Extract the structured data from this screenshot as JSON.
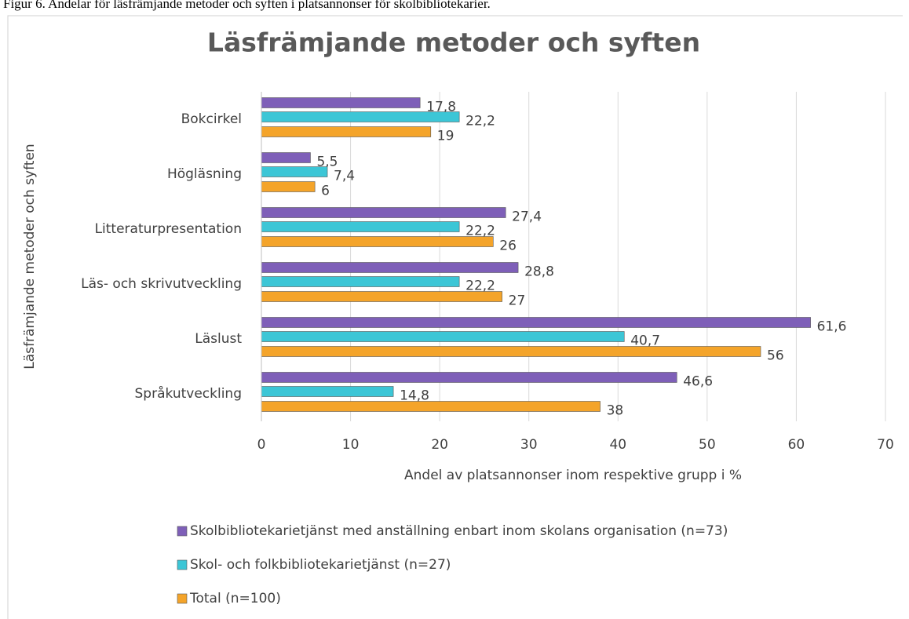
{
  "caption": "Figur 6. Andelar för läsfrämjande metoder och syften i platsannonser för skolbibliotekarier.",
  "chart_data": {
    "type": "hbar",
    "title": "Läsfrämjande metoder och syften",
    "xlabel": "Andel av platsannonser inom respektive grupp i %",
    "ylabel": "Läsfrämjande metoder och syften",
    "categories": [
      "Bokcirkel",
      "Högläsning",
      "Litteraturpresentation",
      "Läs- och skrivutveckling",
      "Läslust",
      "Språkutveckling"
    ],
    "series": [
      {
        "name": "Skolbibliotekarietjänst med anställning enbart inom skolans organisation (n=73)",
        "color": "#7e5fb8",
        "values": [
          17.8,
          5.5,
          27.4,
          28.8,
          61.6,
          46.6
        ],
        "value_labels": [
          "17,8",
          "5,5",
          "27,4",
          "28,8",
          "61,6",
          "46,6"
        ]
      },
      {
        "name": "Skol- och folkbibliotekarietjänst (n=27)",
        "color": "#3cc6d6",
        "values": [
          22.2,
          7.4,
          22.2,
          22.2,
          40.7,
          14.8
        ],
        "value_labels": [
          "22,2",
          "7,4",
          "22,2",
          "22,2",
          "40,7",
          "14,8"
        ]
      },
      {
        "name": "Total (n=100)",
        "color": "#f4a42a",
        "values": [
          19,
          6,
          26,
          27,
          56,
          38
        ],
        "value_labels": [
          "19",
          "6",
          "26",
          "27",
          "56",
          "38"
        ]
      }
    ],
    "xlim": [
      0,
      70
    ],
    "xticks": [
      0,
      10,
      20,
      30,
      40,
      50,
      60,
      70
    ],
    "grid": true,
    "legend": "bottom"
  }
}
